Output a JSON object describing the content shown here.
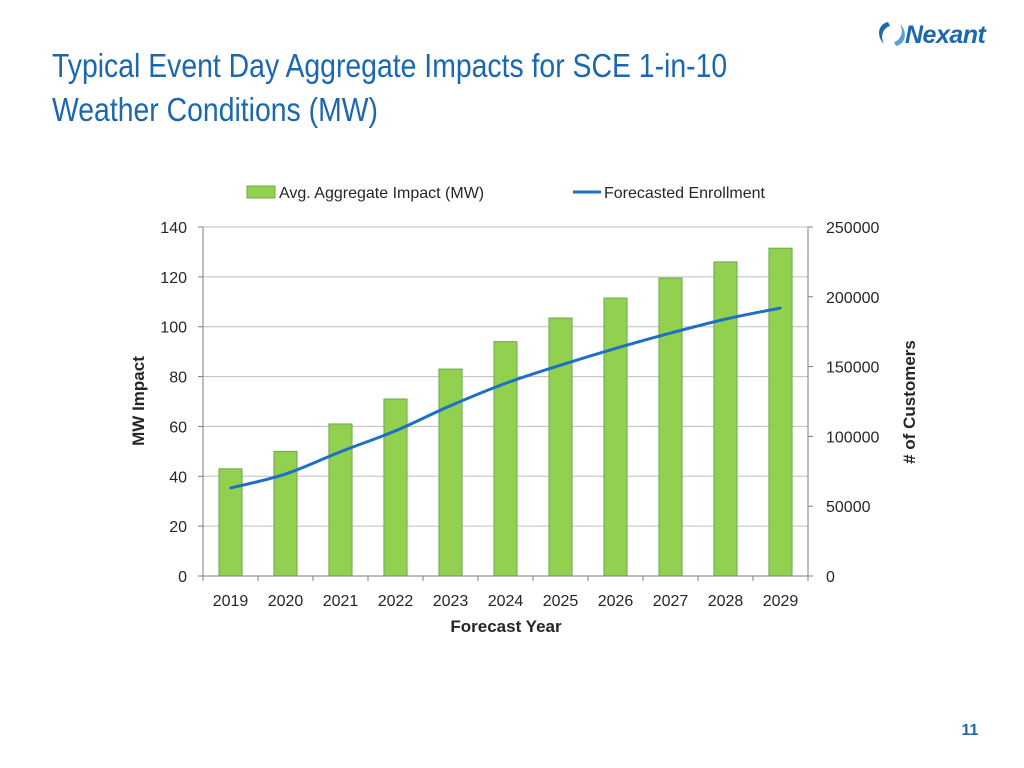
{
  "slide": {
    "title": "Typical Event Day Aggregate Impacts for SCE 1-in-10 Weather Conditions (MW)",
    "logo_text": "Nexant",
    "page_number": "11"
  },
  "colors": {
    "title": "#1b68b0",
    "bar_fill": "#92d050",
    "bar_stroke": "#6aa84f",
    "line": "#1f6fc4",
    "grid": "#bfbfbf",
    "axis_text": "#262626"
  },
  "chart_data": {
    "type": "bar",
    "combo": "bar-line-dual-axis",
    "categories": [
      "2019",
      "2020",
      "2021",
      "2022",
      "2023",
      "2024",
      "2025",
      "2026",
      "2027",
      "2028",
      "2029"
    ],
    "series": [
      {
        "name": "Avg. Aggregate Impact (MW)",
        "type": "bar",
        "axis": "left",
        "values": [
          43,
          50,
          61,
          71,
          83,
          94,
          103.5,
          111.5,
          119.5,
          126,
          131.5
        ]
      },
      {
        "name": "Forecasted Enrollment",
        "type": "line",
        "axis": "right",
        "values": [
          63000,
          73000,
          89000,
          104000,
          122000,
          138000,
          151000,
          163000,
          174000,
          184000,
          192000
        ]
      }
    ],
    "xlabel": "Forecast Year",
    "ylabel": "MW Impact",
    "y2label": "# of Customers",
    "ylim": [
      0,
      140
    ],
    "yticks": [
      "0",
      "20",
      "40",
      "60",
      "80",
      "100",
      "120",
      "140"
    ],
    "y2lim": [
      0,
      250000
    ],
    "y2ticks": [
      "0",
      "50000",
      "100000",
      "150000",
      "200000",
      "250000"
    ],
    "legend_position": "top",
    "grid": true
  }
}
